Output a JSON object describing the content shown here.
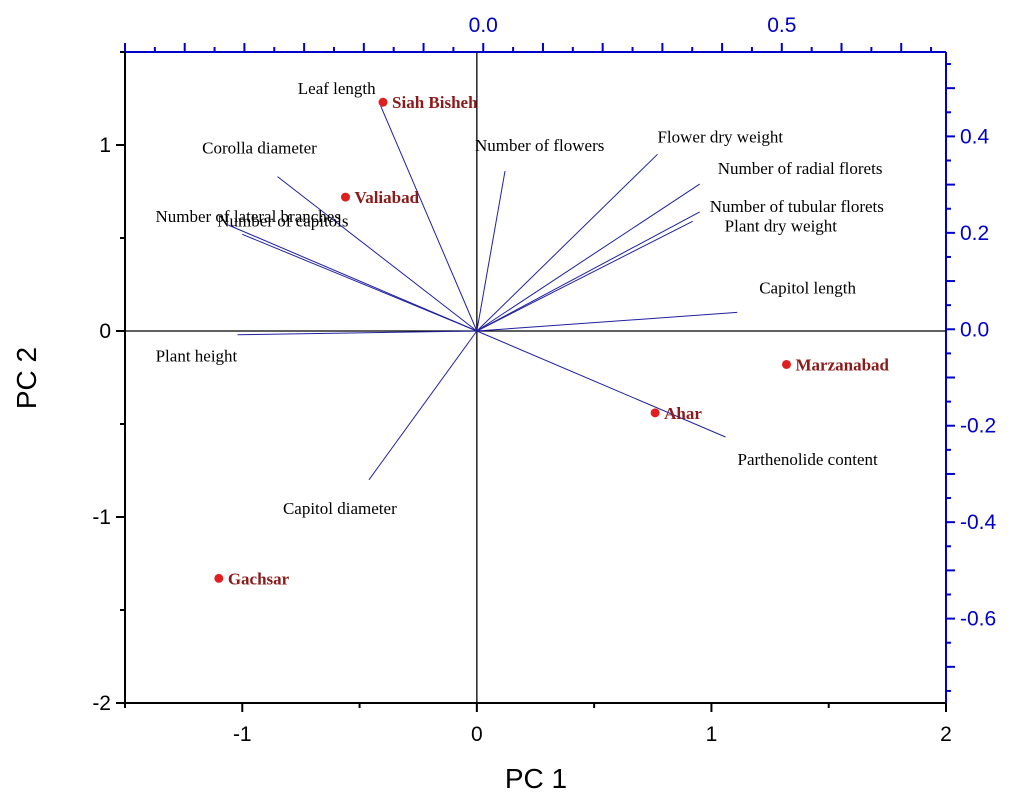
{
  "chart_data": {
    "type": "scatter",
    "subtype": "biplot",
    "title": "",
    "xlabel": "PC 1",
    "ylabel": "PC 2",
    "xlim": [
      -1.5,
      2.0
    ],
    "ylim": [
      -2.0,
      1.5
    ],
    "x_ticks": [
      -1,
      0,
      1,
      2
    ],
    "y_ticks": [
      -2,
      -1,
      0,
      1
    ],
    "top_axis": {
      "lim": [
        -0.6,
        0.775
      ],
      "ticks": [
        "0.0",
        "0.5"
      ],
      "tick_values": [
        0.0,
        0.5
      ],
      "color": "#0000c8"
    },
    "right_axis": {
      "lim": [
        -0.775,
        0.575
      ],
      "ticks": [
        "-0.6",
        "-0.4",
        "-0.2",
        "0.0",
        "0.2",
        "0.4"
      ],
      "tick_values": [
        -0.6,
        -0.4,
        -0.2,
        0.0,
        0.2,
        0.4
      ],
      "color": "#0000c8"
    },
    "crosshair_at_zero": true,
    "grid": false,
    "points": [
      {
        "label": "Siah Bisheh",
        "x": -0.4,
        "y": 1.23
      },
      {
        "label": "Valiabad",
        "x": -0.56,
        "y": 0.72
      },
      {
        "label": "Marzanabad",
        "x": 1.32,
        "y": -0.18
      },
      {
        "label": "Ahar",
        "x": 0.76,
        "y": -0.44
      },
      {
        "label": "Gachsar",
        "x": -1.1,
        "y": -1.33
      }
    ],
    "vectors": [
      {
        "label": "Leaf length",
        "x": -0.41,
        "y": 1.21
      },
      {
        "label": "Corolla diameter",
        "x": -0.85,
        "y": 0.83
      },
      {
        "label": "Number of lateral branches",
        "x": -1.06,
        "y": 0.57
      },
      {
        "label": "Number of capitols",
        "x": -1.0,
        "y": 0.52
      },
      {
        "label": "Plant height",
        "x": -1.02,
        "y": -0.02
      },
      {
        "label": "Number of flowers",
        "x": 0.12,
        "y": 0.86
      },
      {
        "label": "Flower dry weight",
        "x": 0.77,
        "y": 0.95
      },
      {
        "label": "Number of radial florets",
        "x": 0.95,
        "y": 0.79
      },
      {
        "label": "Number of tubular florets",
        "x": 0.95,
        "y": 0.64
      },
      {
        "label": "Plant dry weight",
        "x": 0.92,
        "y": 0.59
      },
      {
        "label": "Capitol length",
        "x": 1.11,
        "y": 0.1
      },
      {
        "label": "Parthenolide content",
        "x": 1.06,
        "y": -0.57
      },
      {
        "label": "Capitol diameter",
        "x": -0.46,
        "y": -0.8
      }
    ],
    "colors": {
      "points": "#e02020",
      "point_labels": "#8b1a1a",
      "vectors": "#2020a0",
      "secondary_axis": "#0000c8"
    }
  }
}
